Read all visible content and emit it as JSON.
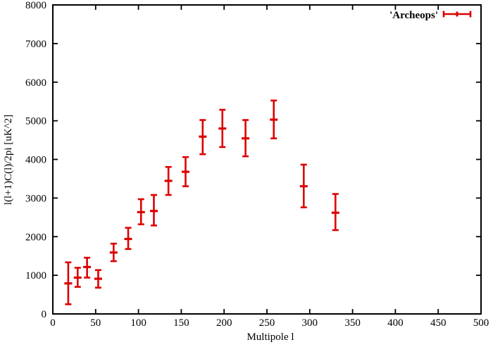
{
  "chart_data": {
    "type": "scatter",
    "subtype": "yerrorbars",
    "title": "",
    "xlabel": "Multipole l",
    "ylabel": "l(l+1)C(l)/2pi [uK^2]",
    "xlim": [
      0,
      500
    ],
    "ylim": [
      0,
      8000
    ],
    "xtick_interval": 50,
    "ytick_interval": 1000,
    "grid": false,
    "legend_position": "top-right-inside",
    "series": [
      {
        "name": "'Archeops'",
        "color": "#dd0000",
        "points": [
          {
            "x": 18,
            "y": 790,
            "ylow": 250,
            "yhigh": 1335
          },
          {
            "x": 29,
            "y": 940,
            "ylow": 700,
            "yhigh": 1195
          },
          {
            "x": 40,
            "y": 1215,
            "ylow": 940,
            "yhigh": 1455
          },
          {
            "x": 53,
            "y": 910,
            "ylow": 680,
            "yhigh": 1135
          },
          {
            "x": 71,
            "y": 1590,
            "ylow": 1365,
            "yhigh": 1820
          },
          {
            "x": 88,
            "y": 1940,
            "ylow": 1680,
            "yhigh": 2230
          },
          {
            "x": 103,
            "y": 2635,
            "ylow": 2320,
            "yhigh": 2970
          },
          {
            "x": 118,
            "y": 2665,
            "ylow": 2290,
            "yhigh": 3080
          },
          {
            "x": 135,
            "y": 3445,
            "ylow": 3080,
            "yhigh": 3805
          },
          {
            "x": 155,
            "y": 3680,
            "ylow": 3305,
            "yhigh": 4060
          },
          {
            "x": 175,
            "y": 4590,
            "ylow": 4135,
            "yhigh": 5020
          },
          {
            "x": 198,
            "y": 4800,
            "ylow": 4320,
            "yhigh": 5285
          },
          {
            "x": 225,
            "y": 4545,
            "ylow": 4080,
            "yhigh": 5020
          },
          {
            "x": 258,
            "y": 5030,
            "ylow": 4545,
            "yhigh": 5525
          },
          {
            "x": 293,
            "y": 3305,
            "ylow": 2760,
            "yhigh": 3865
          },
          {
            "x": 330,
            "y": 2620,
            "ylow": 2170,
            "yhigh": 3105
          }
        ]
      }
    ]
  },
  "legend": {
    "label": "'Archeops'"
  },
  "colors": {
    "accent": "#dd0000",
    "axis": "#000000",
    "background": "#ffffff"
  }
}
